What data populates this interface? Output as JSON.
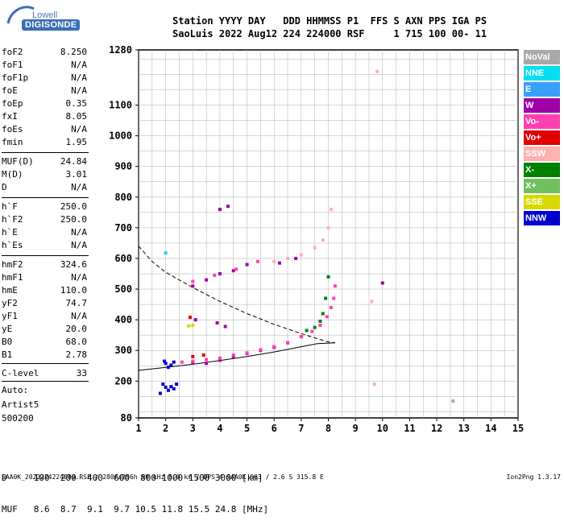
{
  "logo": {
    "word": "Lowell",
    "brand": "DIGISONDE"
  },
  "header": {
    "line1": "Station YYYY DAY   DDD HHMMSS P1  FFS S AXN PPS IGA PS",
    "line2": "SaoLuis 2022 Aug12 224 224000 RSF     1 715 100 00- 11"
  },
  "parameters": [
    {
      "name": "foF2",
      "value": "8.250"
    },
    {
      "name": "foF1",
      "value": "N/A"
    },
    {
      "name": "foF1p",
      "value": "N/A"
    },
    {
      "name": "foE",
      "value": "N/A"
    },
    {
      "name": "foEp",
      "value": "0.35"
    },
    {
      "name": "fxI",
      "value": "8.05"
    },
    {
      "name": "foEs",
      "value": "N/A"
    },
    {
      "name": "fmin",
      "value": "1.95"
    },
    {
      "name": "MUF(D)",
      "value": "24.84"
    },
    {
      "name": "M(D)",
      "value": "3.01"
    },
    {
      "name": "D",
      "value": "N/A"
    },
    {
      "name": "h`F",
      "value": "250.0"
    },
    {
      "name": "h`F2",
      "value": "250.0"
    },
    {
      "name": "h`E",
      "value": "N/A"
    },
    {
      "name": "h`Es",
      "value": "N/A"
    },
    {
      "name": "hmF2",
      "value": "324.6"
    },
    {
      "name": "hmF1",
      "value": "N/A"
    },
    {
      "name": "hmE",
      "value": "110.0"
    },
    {
      "name": "yF2",
      "value": "74.7"
    },
    {
      "name": "yF1",
      "value": "N/A"
    },
    {
      "name": "yE",
      "value": "20.0"
    },
    {
      "name": "B0",
      "value": "68.0"
    },
    {
      "name": "B1",
      "value": "2.78"
    },
    {
      "name": "C-level",
      "value": "33"
    }
  ],
  "auto": {
    "label": "Auto:",
    "artist": "Artist5",
    "version": "500200"
  },
  "legend": [
    {
      "label": "NoVal",
      "color": "#a8a8a8"
    },
    {
      "label": "NNE",
      "color": "#00e0f0"
    },
    {
      "label": "E",
      "color": "#3aa0ff"
    },
    {
      "label": "W",
      "color": "#a000a8"
    },
    {
      "label": "Vo-",
      "color": "#ff40b0"
    },
    {
      "label": "Vo+",
      "color": "#e00000"
    },
    {
      "label": "SSW",
      "color": "#ffb0b0"
    },
    {
      "label": "X-",
      "color": "#008000"
    },
    {
      "label": "X+",
      "color": "#70c060"
    },
    {
      "label": "SSE",
      "color": "#d8d800"
    },
    {
      "label": "NNW",
      "color": "#0000d0"
    }
  ],
  "footer": {
    "line1": "D     100  200  400  600  800 1000 1500 3000 [km]",
    "line2": "MUF   8.6  8.7  9.1  9.7 10.5 11.8 15.5 24.8 [MHz]",
    "line3": "SAA0K_2022224224000.RSF / 280fx256h 50 kHz 5.0 km / DPS-4 SAA0K 903 / 2.6 S 315.8 E",
    "version": "Ion2Png 1.3.17"
  },
  "chart_data": {
    "type": "scatter",
    "xlim": [
      1,
      15
    ],
    "ylim": [
      80,
      1280
    ],
    "x_ticks": [
      1,
      2,
      3,
      4,
      5,
      6,
      7,
      8,
      9,
      10,
      11,
      12,
      13,
      14,
      15
    ],
    "y_ticks": [
      80,
      200,
      300,
      400,
      500,
      600,
      700,
      800,
      900,
      1000,
      1100,
      1280
    ],
    "x_unit": "MHz",
    "y_unit": "km",
    "grid": true,
    "series": [
      {
        "name": "NNW",
        "color": "#0000d0",
        "points": [
          [
            1.9,
            190
          ],
          [
            2.0,
            180
          ],
          [
            2.2,
            182
          ],
          [
            2.3,
            175
          ],
          [
            2.4,
            190
          ],
          [
            2.1,
            170
          ],
          [
            1.8,
            160
          ],
          [
            2.0,
            258
          ],
          [
            2.2,
            252
          ],
          [
            2.3,
            262
          ],
          [
            1.95,
            265
          ],
          [
            2.1,
            245
          ]
        ]
      },
      {
        "name": "W",
        "color": "#a000a8",
        "points": [
          [
            3.0,
            260
          ],
          [
            3.5,
            258
          ],
          [
            4.0,
            268
          ],
          [
            4.5,
            280
          ],
          [
            5.0,
            290
          ],
          [
            5.5,
            300
          ],
          [
            6.0,
            310
          ],
          [
            6.5,
            325
          ],
          [
            7.0,
            345
          ],
          [
            3.0,
            510
          ],
          [
            3.5,
            530
          ],
          [
            4.0,
            550
          ],
          [
            4.5,
            560
          ],
          [
            5.0,
            580
          ],
          [
            3.1,
            400
          ],
          [
            3.9,
            390
          ],
          [
            4.2,
            378
          ],
          [
            4.0,
            760
          ],
          [
            4.3,
            770
          ],
          [
            6.2,
            585
          ],
          [
            6.8,
            600
          ],
          [
            10.0,
            520
          ]
        ]
      },
      {
        "name": "Vo-",
        "color": "#ff40b0",
        "points": [
          [
            2.6,
            262
          ],
          [
            3.0,
            265
          ],
          [
            3.5,
            270
          ],
          [
            4.0,
            275
          ],
          [
            4.5,
            285
          ],
          [
            5.0,
            292
          ],
          [
            5.5,
            302
          ],
          [
            6.0,
            312
          ],
          [
            6.5,
            325
          ],
          [
            7.0,
            345
          ],
          [
            7.4,
            362
          ],
          [
            7.7,
            382
          ],
          [
            7.95,
            410
          ],
          [
            8.1,
            440
          ],
          [
            8.2,
            470
          ],
          [
            8.25,
            510
          ],
          [
            3.0,
            525
          ],
          [
            3.8,
            545
          ],
          [
            4.6,
            565
          ],
          [
            5.4,
            590
          ]
        ]
      },
      {
        "name": "SSW",
        "color": "#ffb0b0",
        "points": [
          [
            6.0,
            590
          ],
          [
            6.5,
            600
          ],
          [
            7.0,
            612
          ],
          [
            7.5,
            635
          ],
          [
            7.8,
            660
          ],
          [
            8.0,
            700
          ],
          [
            8.1,
            760
          ],
          [
            9.8,
            1210
          ],
          [
            9.6,
            460
          ],
          [
            9.7,
            190
          ]
        ]
      },
      {
        "name": "X-",
        "color": "#008000",
        "points": [
          [
            7.2,
            365
          ],
          [
            7.5,
            375
          ],
          [
            7.7,
            395
          ],
          [
            7.8,
            420
          ],
          [
            7.9,
            470
          ],
          [
            8.0,
            540
          ]
        ]
      },
      {
        "name": "Vo+",
        "color": "#e00000",
        "points": [
          [
            3.0,
            280
          ],
          [
            2.9,
            408
          ],
          [
            3.4,
            285
          ]
        ]
      },
      {
        "name": "SSE",
        "color": "#d8d800",
        "points": [
          [
            2.85,
            380
          ],
          [
            3.0,
            382
          ]
        ]
      },
      {
        "name": "NNE",
        "color": "#00e0f0",
        "points": [
          [
            2.0,
            618
          ]
        ]
      },
      {
        "name": "NoVal",
        "color": "#a8a8a8",
        "points": [
          [
            12.6,
            135
          ]
        ]
      }
    ],
    "profile_dashed": [
      [
        1,
        640
      ],
      [
        1.5,
        590
      ],
      [
        2,
        555
      ],
      [
        3,
        505
      ],
      [
        4,
        460
      ],
      [
        5,
        420
      ],
      [
        6,
        385
      ],
      [
        7,
        355
      ],
      [
        7.6,
        338
      ],
      [
        8.0,
        328
      ],
      [
        8.25,
        324.6
      ]
    ],
    "profile_solid": [
      [
        1,
        235
      ],
      [
        2,
        245
      ],
      [
        3,
        255
      ],
      [
        4,
        267
      ],
      [
        5,
        280
      ],
      [
        6,
        295
      ],
      [
        7,
        312
      ],
      [
        7.6,
        322
      ],
      [
        8.0,
        324
      ],
      [
        8.25,
        324.6
      ]
    ]
  }
}
